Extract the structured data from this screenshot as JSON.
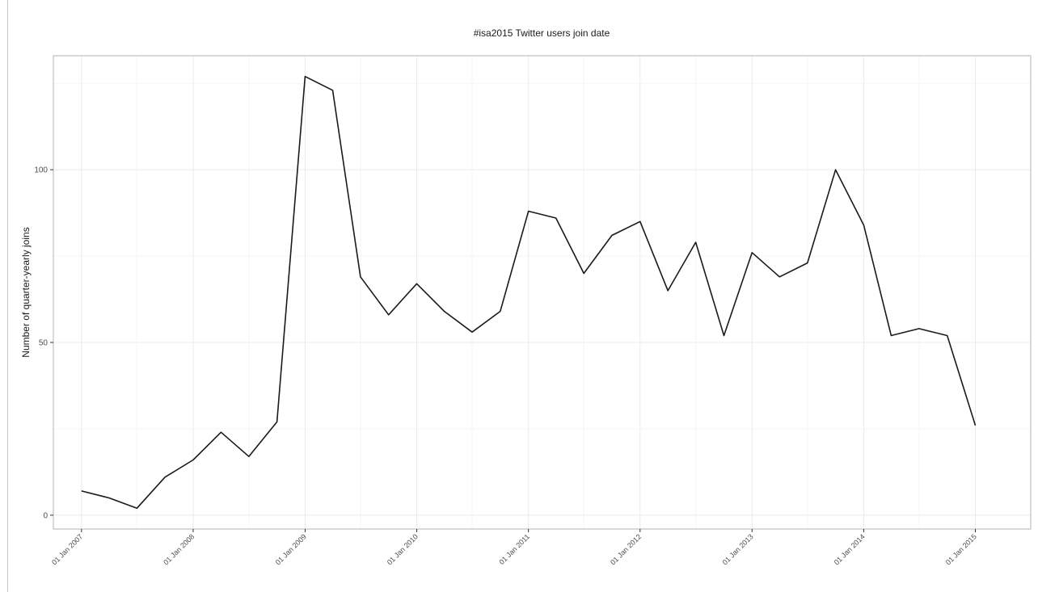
{
  "chart_data": {
    "type": "line",
    "title": "#isa2015 Twitter users join date",
    "xlabel": "",
    "ylabel": "Number of quarter-yearly joins",
    "x_tick_labels": [
      "01 Jan 2007",
      "01 Jan 2008",
      "01 Jan 2009",
      "01 Jan 2010",
      "01 Jan 2011",
      "01 Jan 2012",
      "01 Jan 2013",
      "01 Jan 2014",
      "01 Jan 2015"
    ],
    "y_tick_labels": [
      "0",
      "50",
      "100"
    ],
    "y_ticks": [
      0,
      50,
      100
    ],
    "xlim": [
      "2006-10-01",
      "2015-07-01"
    ],
    "ylim": [
      -4,
      133
    ],
    "grid": true,
    "line_color": "#1a1a1a",
    "series": [
      {
        "x": [
          "2007-01-01",
          "2007-04-01",
          "2007-07-01",
          "2007-10-01",
          "2008-01-01",
          "2008-04-01",
          "2008-07-01",
          "2008-10-01",
          "2009-01-01",
          "2009-04-01",
          "2009-07-01",
          "2009-10-01",
          "2010-01-01",
          "2010-04-01",
          "2010-07-01",
          "2010-10-01",
          "2011-01-01",
          "2011-04-01",
          "2011-07-01",
          "2011-10-01",
          "2012-01-01",
          "2012-04-01",
          "2012-07-01",
          "2012-10-01",
          "2013-01-01",
          "2013-04-01",
          "2013-07-01",
          "2013-10-01",
          "2014-01-01",
          "2014-04-01",
          "2014-07-01",
          "2014-10-01",
          "2015-01-01"
        ],
        "values": [
          7,
          5,
          2,
          11,
          16,
          24,
          17,
          27,
          127,
          123,
          69,
          58,
          67,
          59,
          53,
          59,
          88,
          86,
          70,
          81,
          85,
          65,
          79,
          52,
          76,
          69,
          73,
          100,
          84,
          52,
          54,
          52,
          26
        ]
      }
    ]
  }
}
